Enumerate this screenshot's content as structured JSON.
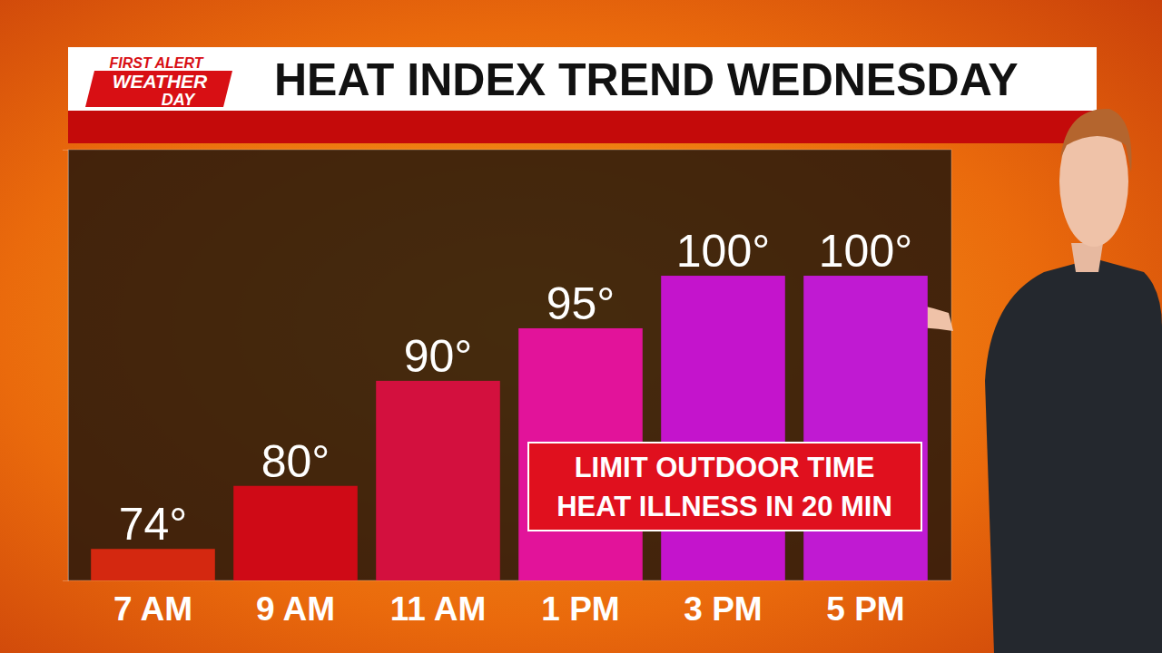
{
  "chart_data": {
    "type": "bar",
    "title": "HEAT INDEX TREND WEDNESDAY",
    "logo": [
      "FIRST ALERT",
      "WEATHER",
      "DAY"
    ],
    "categories": [
      "7 AM",
      "9 AM",
      "11 AM",
      "1 PM",
      "3 PM",
      "5 PM"
    ],
    "values": [
      74,
      80,
      90,
      95,
      100,
      100
    ],
    "value_labels": [
      "74°",
      "80°",
      "90°",
      "95°",
      "100°",
      "100°"
    ],
    "colors": [
      "#d42810",
      "#cf0a16",
      "#d3103e",
      "#e2139a",
      "#c414cc",
      "#c01ad2"
    ],
    "ylim": [
      71,
      112
    ],
    "yticks": [],
    "tick_labels": "x",
    "data_labels": true,
    "grid": false,
    "annotations": [
      "LIMIT OUTDOOR TIME",
      "HEAT ILLNESS IN 20 MIN"
    ]
  }
}
